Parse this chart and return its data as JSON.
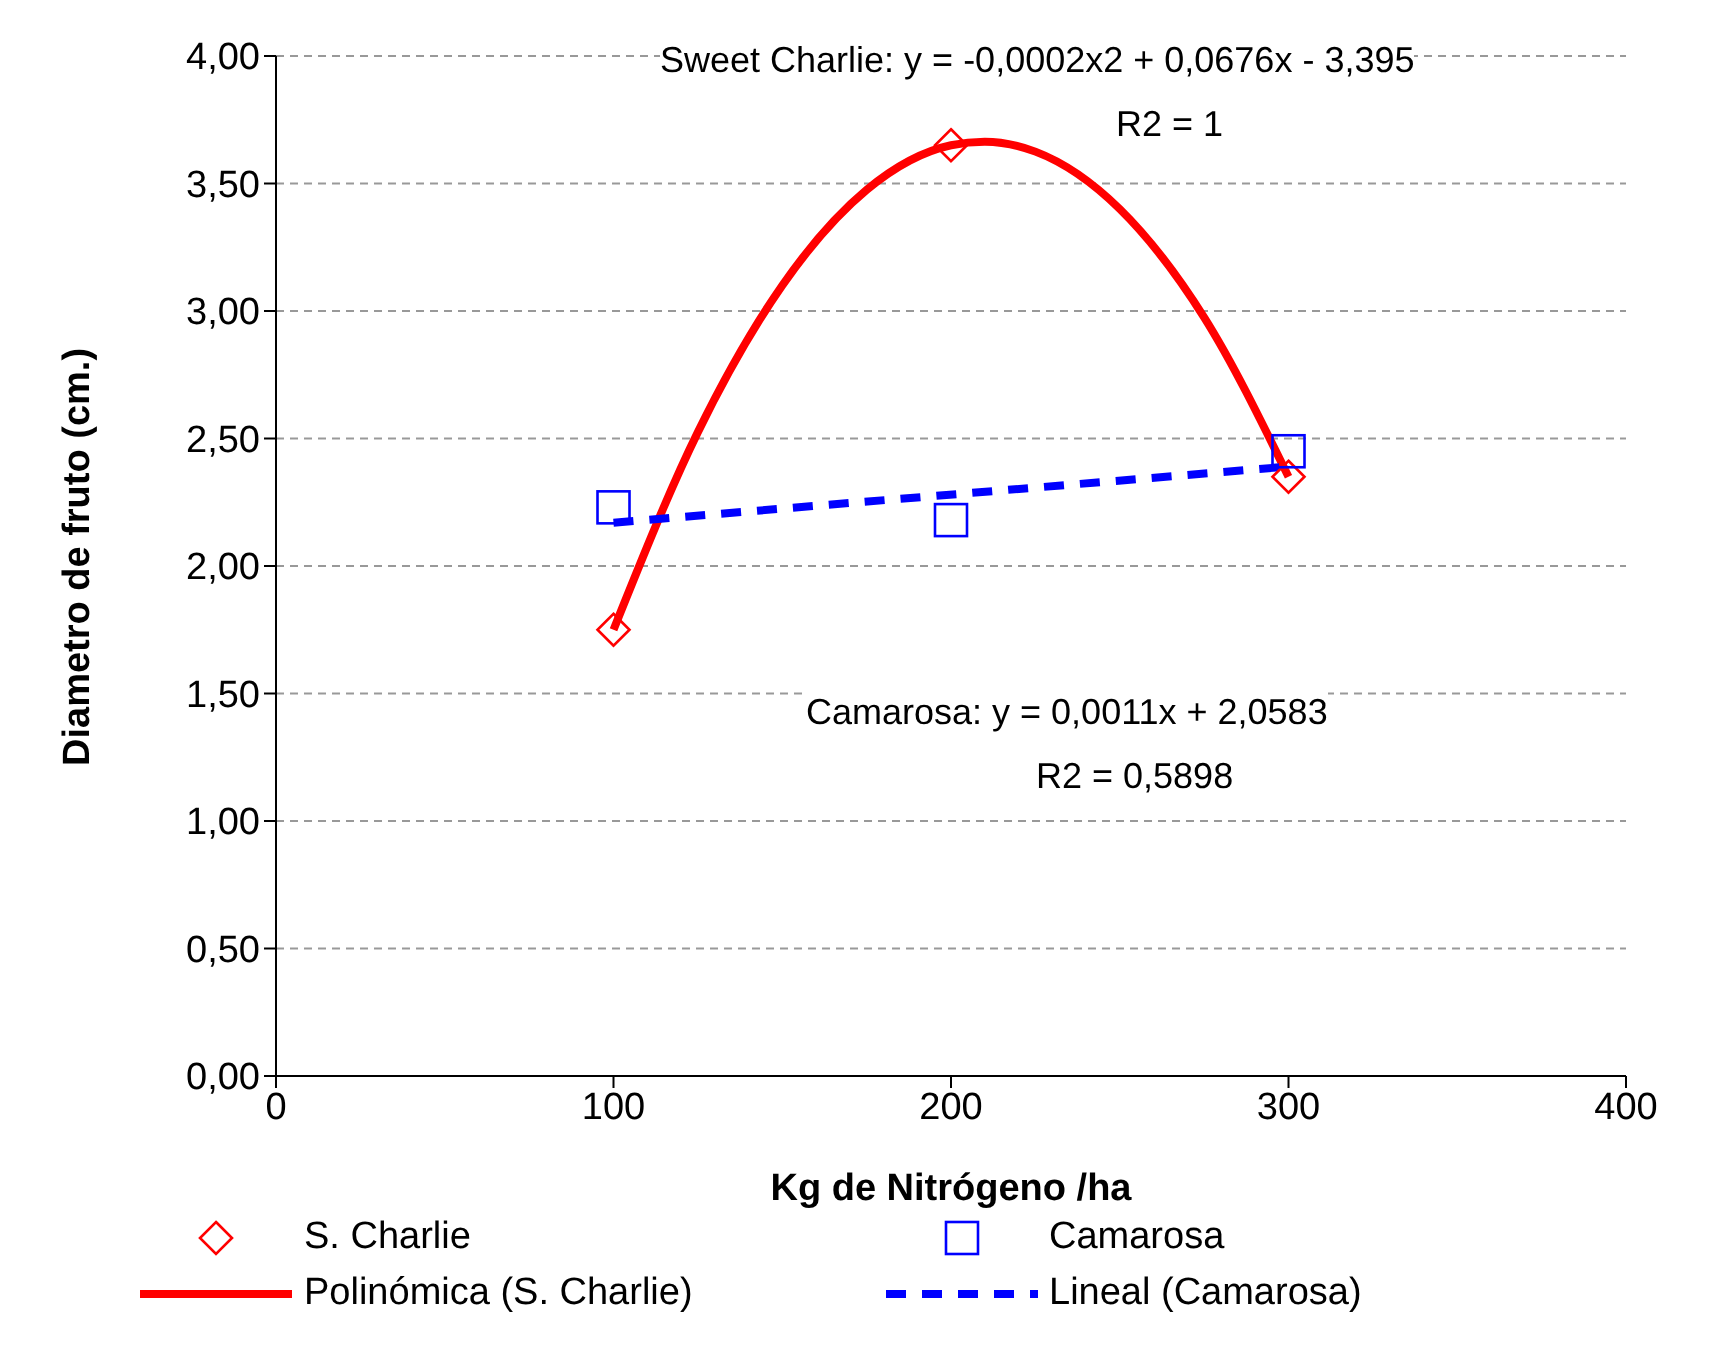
{
  "chart_data": {
    "type": "scatter",
    "xlabel": "Kg de Nitrógeno /ha",
    "ylabel": "Diametro de fruto (cm.)",
    "xlim": [
      0,
      400
    ],
    "xticks": [
      0,
      100,
      200,
      300,
      400
    ],
    "ylim": [
      0,
      4
    ],
    "yticks": [
      {
        "value": 0,
        "label": "0,00"
      },
      {
        "value": 0.5,
        "label": "0,50"
      },
      {
        "value": 1,
        "label": "1,00"
      },
      {
        "value": 1.5,
        "label": "1,50"
      },
      {
        "value": 2,
        "label": "2,00"
      },
      {
        "value": 2.5,
        "label": "2,50"
      },
      {
        "value": 3,
        "label": "3,00"
      },
      {
        "value": 3.5,
        "label": "3,50"
      },
      {
        "value": 4,
        "label": "4,00"
      }
    ],
    "grid": "y",
    "legend": "bottom",
    "series": [
      {
        "name": "S. Charlie",
        "marker": "diamond",
        "color": "#ff0000",
        "x": [
          100,
          200,
          300
        ],
        "values": [
          1.75,
          3.65,
          2.35
        ]
      },
      {
        "name": "Camarosa",
        "marker": "square",
        "color": "#0000ff",
        "x": [
          100,
          200,
          300
        ],
        "values": [
          2.23,
          2.18,
          2.45
        ]
      },
      {
        "name": "Polinómica (S. Charlie)",
        "type": "line",
        "marker": "none",
        "line_style": "solid",
        "color": "#ff0000",
        "x": [
          100,
          125,
          150,
          175,
          200,
          210,
          225,
          250,
          275,
          300
        ],
        "values": [
          1.75,
          2.525,
          3.1,
          3.475,
          3.65,
          3.664,
          3.625,
          3.4,
          2.975,
          2.35
        ]
      },
      {
        "name": "Lineal (Camarosa)",
        "type": "line",
        "marker": "none",
        "line_style": "dashed",
        "color": "#0000ff",
        "x": [
          100,
          300
        ],
        "values": [
          2.17,
          2.39
        ]
      }
    ],
    "annotations": [
      "Sweet Charlie: y = -0,0002x2 + 0,0676x - 3,395",
      "R2 = 1",
      "Camarosa: y = 0,0011x + 2,0583",
      "R2 = 0,5898"
    ]
  }
}
